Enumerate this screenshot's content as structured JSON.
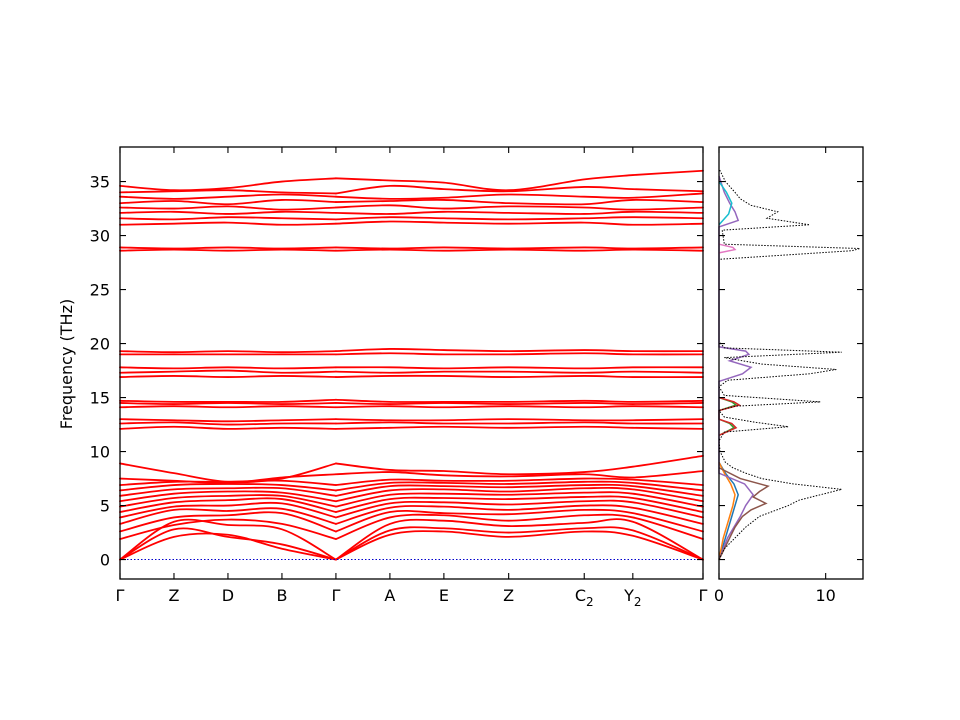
{
  "chart_data": [
    {
      "type": "line",
      "name": "band-structure",
      "ylabel": "Frequency (THz)",
      "ylim": [
        -1.8,
        38.2
      ],
      "yticks": [
        0,
        5,
        10,
        15,
        20,
        25,
        30,
        35
      ],
      "grid": false,
      "kpath": [
        {
          "label": "Γ",
          "sub": "",
          "x": 0.0
        },
        {
          "label": "Z",
          "sub": "",
          "x": 0.5
        },
        {
          "label": "D",
          "sub": "",
          "x": 1.0
        },
        {
          "label": "B",
          "sub": "",
          "x": 1.5
        },
        {
          "label": "Γ",
          "sub": "",
          "x": 2.0
        },
        {
          "label": "A",
          "sub": "",
          "x": 2.5
        },
        {
          "label": "E",
          "sub": "",
          "x": 3.0
        },
        {
          "label": "Z",
          "sub": "",
          "x": 3.6
        },
        {
          "label": "C",
          "sub": "2",
          "x": 4.3
        },
        {
          "label": "Y",
          "sub": "2",
          "x": 4.75
        },
        {
          "label": "Γ",
          "sub": "",
          "x": 5.4
        }
      ],
      "series_color": "#ff0000",
      "zero_line_color": "#0000cc",
      "bands": {
        "x": [
          0.0,
          0.5,
          1.0,
          1.5,
          2.0,
          2.5,
          3.0,
          3.6,
          4.3,
          4.75,
          5.4
        ],
        "series": [
          {
            "values": [
              0,
              2.1,
              2.3,
              1.0,
              0,
              2.3,
              2.6,
              2.1,
              2.6,
              2.2,
              0
            ]
          },
          {
            "values": [
              0,
              2.8,
              2.1,
              1.4,
              0,
              2.7,
              2.9,
              2.5,
              2.9,
              2.7,
              0
            ]
          },
          {
            "values": [
              0,
              3.5,
              3.2,
              2.8,
              0,
              3.3,
              3.6,
              3.1,
              3.4,
              3.5,
              0
            ]
          },
          {
            "values": [
              1.9,
              3.2,
              3.7,
              3.3,
              1.9,
              3.9,
              4.1,
              3.6,
              4.1,
              3.9,
              1.9
            ]
          },
          {
            "values": [
              2.6,
              3.9,
              4.1,
              4.3,
              2.6,
              4.4,
              4.3,
              4.2,
              4.6,
              4.3,
              2.6
            ]
          },
          {
            "values": [
              3.3,
              4.6,
              4.5,
              4.7,
              3.3,
              4.8,
              4.9,
              4.6,
              5.0,
              4.8,
              3.3
            ]
          },
          {
            "values": [
              3.9,
              4.9,
              5.0,
              5.2,
              3.9,
              5.2,
              5.3,
              5.1,
              5.4,
              5.3,
              3.9
            ]
          },
          {
            "values": [
              4.4,
              5.3,
              5.5,
              5.6,
              4.4,
              5.6,
              5.7,
              5.6,
              5.8,
              5.7,
              4.4
            ]
          },
          {
            "values": [
              4.9,
              5.7,
              5.9,
              5.9,
              4.9,
              6.0,
              6.1,
              6.0,
              6.2,
              6.1,
              4.9
            ]
          },
          {
            "values": [
              5.4,
              6.1,
              6.3,
              6.2,
              5.4,
              6.4,
              6.5,
              6.3,
              6.6,
              6.5,
              5.4
            ]
          },
          {
            "values": [
              5.9,
              6.5,
              6.6,
              6.6,
              5.9,
              6.8,
              6.8,
              6.7,
              6.9,
              6.8,
              5.9
            ]
          },
          {
            "values": [
              6.4,
              6.9,
              7.0,
              6.9,
              6.4,
              7.1,
              7.1,
              7.0,
              7.2,
              7.1,
              6.4
            ]
          },
          {
            "values": [
              6.9,
              7.2,
              7.2,
              7.3,
              6.9,
              7.4,
              7.3,
              7.3,
              7.5,
              7.4,
              6.9
            ]
          },
          {
            "values": [
              7.5,
              7.3,
              7.1,
              7.6,
              7.9,
              8.1,
              7.8,
              7.7,
              7.9,
              7.6,
              8.2
            ]
          },
          {
            "values": [
              8.9,
              8.0,
              7.2,
              7.5,
              8.9,
              8.3,
              8.2,
              7.9,
              8.1,
              8.6,
              9.6
            ]
          },
          {
            "values": [
              12.1,
              12.3,
              12.1,
              12.2,
              12.1,
              12.2,
              12.3,
              12.2,
              12.3,
              12.2,
              12.1
            ]
          },
          {
            "values": [
              12.6,
              12.7,
              12.5,
              12.6,
              12.6,
              12.7,
              12.6,
              12.6,
              12.7,
              12.6,
              12.6
            ]
          },
          {
            "values": [
              13.0,
              12.9,
              12.8,
              12.9,
              13.0,
              12.9,
              12.9,
              13.0,
              12.9,
              12.9,
              13.0
            ]
          },
          {
            "values": [
              14.1,
              14.2,
              14.1,
              14.2,
              14.1,
              14.2,
              14.1,
              14.2,
              14.1,
              14.2,
              14.1
            ]
          },
          {
            "values": [
              14.5,
              14.4,
              14.5,
              14.4,
              14.5,
              14.4,
              14.5,
              14.4,
              14.5,
              14.4,
              14.5
            ]
          },
          {
            "values": [
              14.7,
              14.6,
              14.6,
              14.6,
              14.8,
              14.6,
              14.6,
              14.6,
              14.7,
              14.6,
              14.7
            ]
          },
          {
            "values": [
              16.9,
              17.0,
              16.9,
              17.0,
              16.9,
              17.0,
              17.0,
              16.9,
              17.0,
              16.9,
              16.9
            ]
          },
          {
            "values": [
              17.3,
              17.4,
              17.5,
              17.3,
              17.4,
              17.3,
              17.4,
              17.4,
              17.3,
              17.4,
              17.3
            ]
          },
          {
            "values": [
              17.8,
              17.7,
              17.8,
              17.7,
              17.8,
              17.8,
              17.7,
              17.8,
              17.7,
              17.8,
              17.8
            ]
          },
          {
            "values": [
              19.0,
              19.0,
              19.0,
              19.0,
              19.0,
              19.1,
              19.0,
              19.0,
              19.1,
              19.0,
              19.0
            ]
          },
          {
            "values": [
              19.3,
              19.2,
              19.3,
              19.2,
              19.3,
              19.5,
              19.4,
              19.3,
              19.4,
              19.3,
              19.3
            ]
          },
          {
            "values": [
              28.6,
              28.7,
              28.6,
              28.7,
              28.6,
              28.7,
              28.6,
              28.7,
              28.6,
              28.7,
              28.6
            ]
          },
          {
            "values": [
              28.9,
              28.8,
              28.9,
              28.8,
              28.9,
              28.8,
              28.9,
              28.8,
              28.9,
              28.8,
              28.9
            ]
          },
          {
            "values": [
              31.0,
              31.1,
              31.2,
              31.0,
              31.1,
              31.3,
              31.2,
              31.1,
              31.2,
              31.0,
              31.1
            ]
          },
          {
            "values": [
              31.6,
              31.5,
              31.7,
              31.6,
              31.5,
              31.7,
              31.6,
              31.5,
              31.6,
              31.7,
              31.6
            ]
          },
          {
            "values": [
              32.1,
              32.2,
              32.0,
              32.2,
              32.1,
              32.0,
              32.2,
              32.1,
              32.0,
              32.2,
              32.1
            ]
          },
          {
            "values": [
              32.6,
              32.5,
              32.7,
              32.4,
              32.6,
              32.8,
              32.5,
              32.7,
              32.6,
              32.4,
              32.6
            ]
          },
          {
            "values": [
              33.0,
              33.2,
              32.9,
              33.3,
              33.1,
              33.2,
              33.3,
              33.0,
              32.9,
              33.3,
              33.1
            ]
          },
          {
            "values": [
              33.6,
              33.4,
              33.6,
              33.8,
              33.6,
              33.4,
              33.5,
              33.8,
              33.6,
              33.5,
              33.9
            ]
          },
          {
            "values": [
              34.0,
              34.1,
              34.2,
              34.0,
              33.9,
              34.6,
              34.3,
              34.1,
              34.5,
              34.3,
              34.1
            ]
          },
          {
            "values": [
              34.6,
              34.2,
              34.4,
              35.0,
              35.3,
              35.1,
              34.9,
              34.2,
              35.2,
              35.6,
              36.0
            ]
          }
        ]
      }
    },
    {
      "type": "area",
      "name": "phonon-dos",
      "xlim": [
        0,
        13.5
      ],
      "xticks": [
        0,
        10
      ],
      "ylim": [
        -1.8,
        38.2
      ],
      "total_dos_color": "#000000",
      "total_dos": {
        "y": [
          0,
          1,
          2,
          3,
          4,
          5,
          5.5,
          6,
          6.5,
          7,
          7.5,
          8,
          8.5,
          9,
          10,
          11,
          11.8,
          12.3,
          12.7,
          13.2,
          13.8,
          14.2,
          14.6,
          15.2,
          16,
          16.6,
          17.2,
          17.6,
          18.1,
          18.7,
          19.2,
          19.6,
          20.2,
          27.8,
          28.6,
          28.8,
          29.2,
          30.5,
          31.0,
          31.6,
          32.2,
          32.8,
          33.4,
          34.0,
          35.0,
          35.8,
          36.2
        ],
        "dos": [
          0,
          0.5,
          1.5,
          2.5,
          3.8,
          6.5,
          7.5,
          9.5,
          11.5,
          7.0,
          4.0,
          2.5,
          1.3,
          0.6,
          0.1,
          0,
          0.5,
          6.5,
          3.5,
          0.5,
          0,
          1.5,
          9.5,
          0.5,
          0,
          0.8,
          8.5,
          11.0,
          4.0,
          0.5,
          11.5,
          0.5,
          0,
          0,
          12.5,
          13.2,
          0.5,
          0.3,
          8.5,
          4.5,
          5.5,
          3.0,
          2.0,
          1.5,
          0.6,
          0.2,
          0
        ]
      },
      "projected_dos": [
        {
          "color": "#1f77b4",
          "y": [
            0,
            1,
            2,
            3,
            4,
            5,
            6,
            7,
            8,
            9
          ],
          "dos": [
            0,
            0.3,
            0.6,
            0.9,
            1.2,
            1.5,
            1.8,
            1.4,
            0.6,
            0
          ]
        },
        {
          "color": "#ff7f0e",
          "y": [
            0,
            1,
            2,
            3,
            4,
            5,
            6,
            7,
            8,
            9
          ],
          "dos": [
            0,
            0.2,
            0.4,
            0.7,
            1.0,
            1.3,
            1.5,
            1.1,
            0.5,
            0
          ]
        },
        {
          "color": "#2ca02c",
          "y": [
            11.5,
            12.2,
            12.6,
            13.0,
            13.8,
            14.3,
            14.6,
            15.0
          ],
          "dos": [
            0,
            1.4,
            1.0,
            0,
            0,
            1.6,
            1.2,
            0
          ]
        },
        {
          "color": "#d62728",
          "y": [
            11.5,
            12.2,
            12.6,
            13.0,
            13.8,
            14.3,
            14.6,
            15.0
          ],
          "dos": [
            0,
            1.6,
            1.2,
            0,
            0,
            1.9,
            1.4,
            0
          ]
        },
        {
          "color": "#9467bd",
          "y": [
            0,
            2,
            4,
            5,
            6,
            7,
            8,
            16.5,
            17.2,
            17.8,
            18.4,
            19.0,
            19.3,
            19.7,
            30.8,
            31.4,
            32.2,
            33.0,
            34.0,
            35.5
          ],
          "dos": [
            0,
            0.8,
            2.0,
            2.5,
            3.2,
            2.4,
            0,
            0,
            2.2,
            3.0,
            1.0,
            2.8,
            2.5,
            0,
            0,
            1.8,
            1.5,
            1.0,
            0.5,
            0
          ]
        },
        {
          "color": "#8c564b",
          "y": [
            0,
            2,
            3,
            4,
            4.6,
            5.2,
            5.8,
            6.3,
            6.8,
            7.5,
            8.5
          ],
          "dos": [
            0,
            1.0,
            1.5,
            2.2,
            3.0,
            4.4,
            3.2,
            3.8,
            4.6,
            2.0,
            0
          ]
        },
        {
          "color": "#e377c2",
          "y": [
            28.4,
            28.7,
            28.9,
            29.2
          ],
          "dos": [
            0,
            1.5,
            1.3,
            0
          ]
        },
        {
          "color": "#17becf",
          "y": [
            31.0,
            32.0,
            33.0,
            34.0,
            35.0
          ],
          "dos": [
            0,
            0.9,
            1.2,
            0.7,
            0
          ]
        }
      ]
    }
  ]
}
